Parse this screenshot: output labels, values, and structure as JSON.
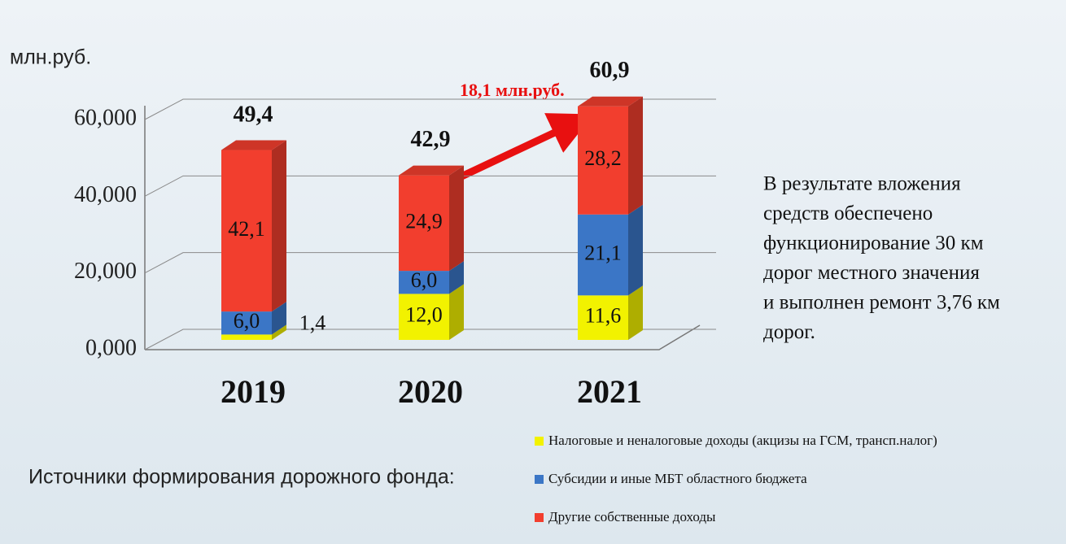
{
  "chart_data": {
    "type": "bar",
    "stacked": true,
    "y_unit_label": "млн.руб.",
    "categories": [
      "2019",
      "2020",
      "2021"
    ],
    "series": [
      {
        "name": "Налоговые и неналоговые доходы (акцизы на ГСМ, трансп.налог)",
        "color": "#f2f200",
        "values": [
          1.4,
          12.0,
          11.6
        ],
        "value_labels": [
          "1,4",
          "12,0",
          "11,6"
        ]
      },
      {
        "name": "Субсидии и иные МБТ областного бюджета",
        "color": "#3b76c6",
        "values": [
          6.0,
          6.0,
          21.1
        ],
        "value_labels": [
          "6,0",
          "6,0",
          "21,1"
        ]
      },
      {
        "name": "Другие собственные доходы",
        "color": "#f23e2e",
        "values": [
          42.1,
          24.9,
          28.2
        ],
        "value_labels": [
          "42,1",
          "24,9",
          "28,2"
        ]
      }
    ],
    "totals": [
      49.4,
      42.9,
      60.9
    ],
    "total_labels": [
      "49,4",
      "42,9",
      "60,9"
    ],
    "ylim": [
      0,
      60
    ],
    "yticks": [
      {
        "value": 0,
        "label": "0,000"
      },
      {
        "value": 20,
        "label": "20,000"
      },
      {
        "value": 40,
        "label": "40,000"
      },
      {
        "value": 60,
        "label": "60,000"
      }
    ],
    "grid": true,
    "annotation": "18,1 млн.руб.",
    "legend_title": "Источники формирования дорожного фонда:",
    "note": [
      "В  результате вложения",
      "средств обеспечено",
      "функционирование 30  км",
      "дорог местного значения",
      "и выполнен ремонт 3,76 км",
      "дорог."
    ]
  }
}
